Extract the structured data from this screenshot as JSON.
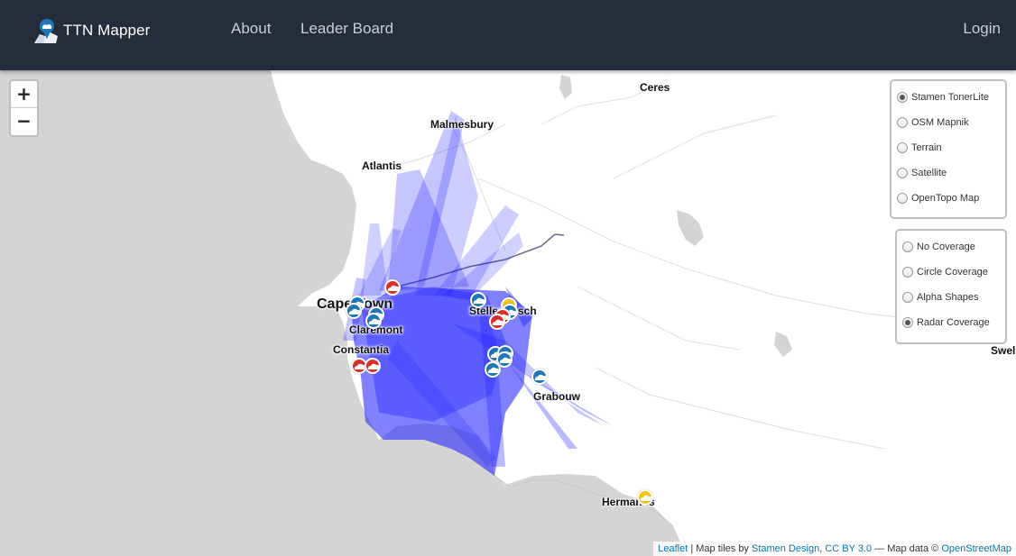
{
  "navbar": {
    "brand": "TTN Mapper",
    "links": {
      "about": "About",
      "leaderboard": "Leader Board",
      "login": "Login"
    }
  },
  "map": {
    "zoom": {
      "in": "+",
      "out": "−"
    },
    "places": {
      "ceres": "Ceres",
      "malmesbury": "Malmesbury",
      "atlantis": "Atlantis",
      "cape_town": "Cape Town",
      "stellenbosch": "Stellenbosch",
      "claremont": "Claremont",
      "constantia": "Constantia",
      "grabouw": "Grabouw",
      "hermanus": "Hermanus",
      "swel": "Swel"
    },
    "base_layers": [
      {
        "label": "Stamen TonerLite",
        "checked": true
      },
      {
        "label": "OSM Mapnik",
        "checked": false
      },
      {
        "label": "Terrain",
        "checked": false
      },
      {
        "label": "Satellite",
        "checked": false
      },
      {
        "label": "OpenTopo Map",
        "checked": false
      }
    ],
    "coverage_layers": [
      {
        "label": "No Coverage",
        "checked": false
      },
      {
        "label": "Circle Coverage",
        "checked": false
      },
      {
        "label": "Alpha Shapes",
        "checked": false
      },
      {
        "label": "Radar Coverage",
        "checked": true
      }
    ],
    "attribution": {
      "leaflet": "Leaflet",
      "tiles_by": "| Map tiles by",
      "stamen": "Stamen Design",
      "sep": ",",
      "license": "CC BY 3.0",
      "map_data": "— Map data ©",
      "osm": "OpenStreetMap"
    },
    "colors": {
      "land": "#ffffff",
      "water": "#d4d4d4",
      "coverage": "#1a1aff",
      "marker_blue": "#1f77b8",
      "marker_red": "#d9302c",
      "marker_yellow": "#f0c419"
    }
  }
}
